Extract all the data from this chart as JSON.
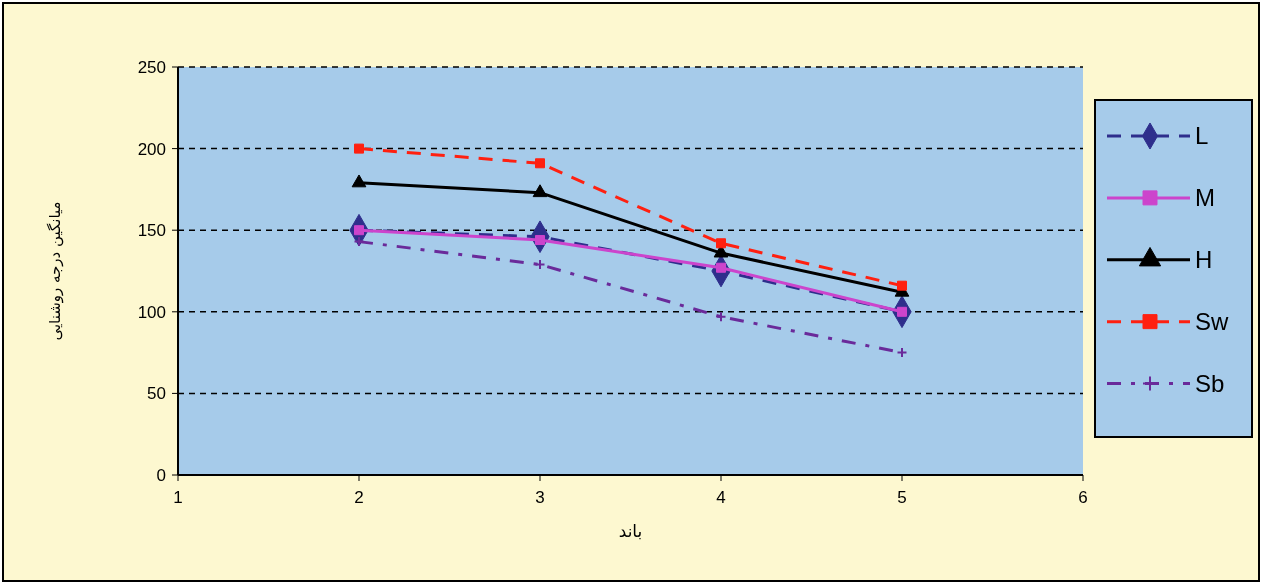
{
  "chart_data": {
    "type": "line",
    "xlabel": "باند",
    "ylabel": "میانگین درجه روشنایی",
    "x": [
      2,
      3,
      4,
      5
    ],
    "xlim": [
      1,
      6
    ],
    "xticks": [
      1,
      2,
      3,
      4,
      5,
      6
    ],
    "ylim": [
      0,
      250
    ],
    "yticks": [
      0,
      50,
      100,
      150,
      200,
      250
    ],
    "grid": "y",
    "legend": "right",
    "series": [
      {
        "name": "L",
        "color": "#2e2e8c",
        "marker": "diamond",
        "line_style": "dashed",
        "values": [
          150,
          146,
          125,
          100
        ]
      },
      {
        "name": "M",
        "color": "#cc44cc",
        "marker": "square",
        "line_style": "solid",
        "values": [
          150,
          144,
          127,
          100
        ]
      },
      {
        "name": "H",
        "color": "#000000",
        "marker": "triangle",
        "line_style": "solid",
        "values": [
          179,
          173,
          136,
          112
        ]
      },
      {
        "name": "Sw",
        "color": "#ff2010",
        "marker": "square",
        "line_style": "dashed",
        "values": [
          200,
          191,
          142,
          116
        ]
      },
      {
        "name": "Sb",
        "color": "#6a2a9a",
        "marker": "cross",
        "line_style": "dotted",
        "values": [
          143,
          129,
          97,
          75
        ]
      }
    ]
  }
}
